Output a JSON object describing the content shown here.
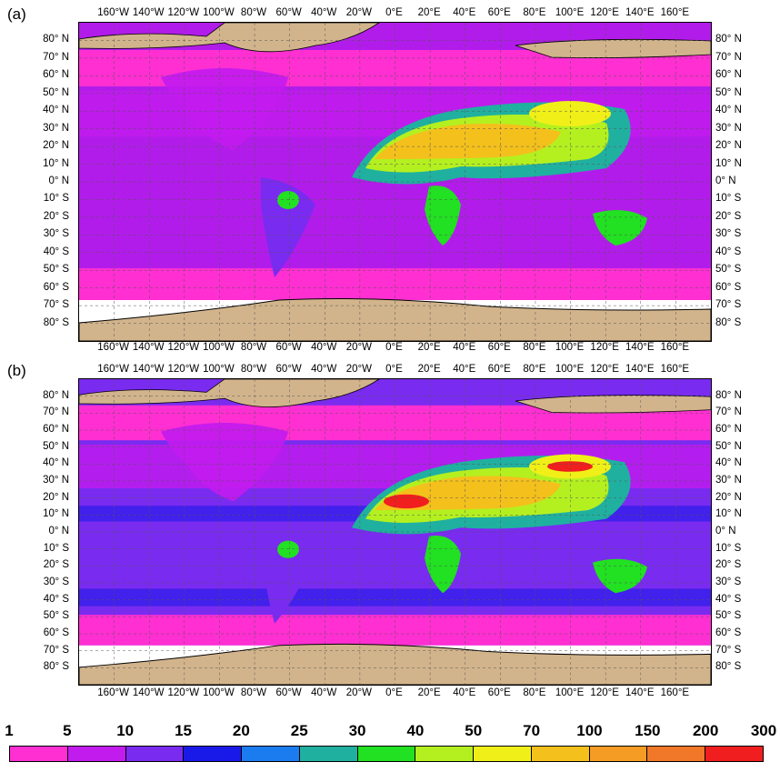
{
  "panels": [
    {
      "label": "(a)"
    },
    {
      "label": "(b)"
    }
  ],
  "lon_labels": [
    "160°W",
    "140°W",
    "120°W",
    "100°W",
    "80°W",
    "60°W",
    "40°W",
    "20°W",
    "0°E",
    "20°E",
    "40°E",
    "60°E",
    "80°E",
    "100°E",
    "120°E",
    "140°E",
    "160°E"
  ],
  "lat_labels": [
    "80° N",
    "70° N",
    "60° N",
    "50° N",
    "40° N",
    "30° N",
    "20° N",
    "10° N",
    "0° N",
    "10° S",
    "20° S",
    "30° S",
    "40° S",
    "50° S",
    "60° S",
    "70° S",
    "80° S"
  ],
  "colorbar": {
    "ticks": [
      "1",
      "5",
      "10",
      "15",
      "20",
      "25",
      "30",
      "40",
      "50",
      "70",
      "100",
      "150",
      "200",
      "300"
    ],
    "colors": [
      "#ff2fd2",
      "#c21bee",
      "#7a2bf0",
      "#1a1ae8",
      "#1b7cf0",
      "#20b0a0",
      "#22e022",
      "#b4f020",
      "#f0f018",
      "#f4c01c",
      "#f49c24",
      "#f07828",
      "#f01e1e"
    ]
  },
  "map_colors": {
    "ocean_low": "#ff2fd2",
    "ocean_mid": "#c000e0",
    "ocean_high": "#7020f0",
    "land_ice": "#d2b48c",
    "sea_ice": "#ffffff"
  }
}
